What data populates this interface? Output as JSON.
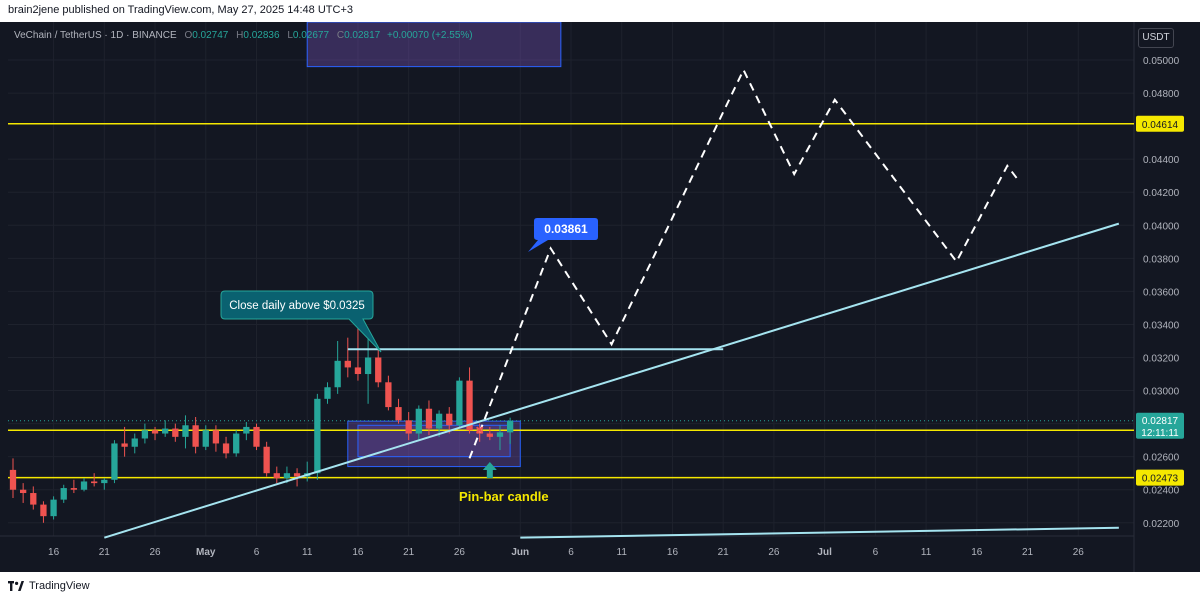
{
  "publisher": {
    "text": "brain2jene published on TradingView.com, May 27, 2025 14:48 UTC+3"
  },
  "legend": {
    "symbol": "VeChain / TetherUS · 1D · BINANCE",
    "open_label": "O",
    "open": "0.02747",
    "high_label": "H",
    "high": "0.02836",
    "low_label": "L",
    "low": "0.02677",
    "close_label": "C",
    "close": "0.02817",
    "change": "+0.00070 (+2.55%)"
  },
  "currency": "USDT",
  "footer": {
    "brand": "TradingView"
  },
  "chart_data": {
    "type": "candlestick",
    "ylim": [
      0.0212,
      0.0523
    ],
    "x_domain": [
      "2025-04-12",
      "2025-07-31"
    ],
    "y_ticks": [
      "0.02200",
      "0.02400",
      "0.02600",
      "0.02800",
      "0.03000",
      "0.03200",
      "0.03400",
      "0.03600",
      "0.03800",
      "0.04000",
      "0.04200",
      "0.04400",
      "0.04800",
      "0.05000"
    ],
    "x_ticks": [
      {
        "date": "2025-04-16",
        "label": "16"
      },
      {
        "date": "2025-04-21",
        "label": "21"
      },
      {
        "date": "2025-04-26",
        "label": "26"
      },
      {
        "date": "2025-05-01",
        "label": "May",
        "bold": true
      },
      {
        "date": "2025-05-06",
        "label": "6"
      },
      {
        "date": "2025-05-11",
        "label": "11"
      },
      {
        "date": "2025-05-16",
        "label": "16"
      },
      {
        "date": "2025-05-21",
        "label": "21"
      },
      {
        "date": "2025-05-26",
        "label": "26"
      },
      {
        "date": "2025-06-01",
        "label": "Jun",
        "bold": true
      },
      {
        "date": "2025-06-06",
        "label": "6"
      },
      {
        "date": "2025-06-11",
        "label": "11"
      },
      {
        "date": "2025-06-16",
        "label": "16"
      },
      {
        "date": "2025-06-21",
        "label": "21"
      },
      {
        "date": "2025-06-26",
        "label": "26"
      },
      {
        "date": "2025-07-01",
        "label": "Jul",
        "bold": true
      },
      {
        "date": "2025-07-06",
        "label": "6"
      },
      {
        "date": "2025-07-11",
        "label": "11"
      },
      {
        "date": "2025-07-16",
        "label": "16"
      },
      {
        "date": "2025-07-21",
        "label": "21"
      },
      {
        "date": "2025-07-26",
        "label": "26"
      }
    ],
    "candles": [
      {
        "date": "2025-04-12",
        "o": 0.0252,
        "h": 0.0259,
        "l": 0.0235,
        "c": 0.024
      },
      {
        "date": "2025-04-13",
        "o": 0.024,
        "h": 0.0244,
        "l": 0.0232,
        "c": 0.0238
      },
      {
        "date": "2025-04-14",
        "o": 0.0238,
        "h": 0.0242,
        "l": 0.0228,
        "c": 0.0231
      },
      {
        "date": "2025-04-15",
        "o": 0.0231,
        "h": 0.0233,
        "l": 0.022,
        "c": 0.0224
      },
      {
        "date": "2025-04-16",
        "o": 0.0224,
        "h": 0.0236,
        "l": 0.0222,
        "c": 0.0234
      },
      {
        "date": "2025-04-17",
        "o": 0.0234,
        "h": 0.0243,
        "l": 0.0232,
        "c": 0.0241
      },
      {
        "date": "2025-04-18",
        "o": 0.0241,
        "h": 0.0246,
        "l": 0.0238,
        "c": 0.024
      },
      {
        "date": "2025-04-19",
        "o": 0.024,
        "h": 0.0247,
        "l": 0.0239,
        "c": 0.0245
      },
      {
        "date": "2025-04-20",
        "o": 0.0245,
        "h": 0.025,
        "l": 0.0242,
        "c": 0.0244
      },
      {
        "date": "2025-04-21",
        "o": 0.0244,
        "h": 0.0247,
        "l": 0.024,
        "c": 0.0246
      },
      {
        "date": "2025-04-22",
        "o": 0.0246,
        "h": 0.027,
        "l": 0.0244,
        "c": 0.0268
      },
      {
        "date": "2025-04-23",
        "o": 0.0268,
        "h": 0.0278,
        "l": 0.026,
        "c": 0.0266
      },
      {
        "date": "2025-04-24",
        "o": 0.0266,
        "h": 0.0274,
        "l": 0.0262,
        "c": 0.0271
      },
      {
        "date": "2025-04-25",
        "o": 0.0271,
        "h": 0.028,
        "l": 0.0268,
        "c": 0.0276
      },
      {
        "date": "2025-04-26",
        "o": 0.0276,
        "h": 0.0278,
        "l": 0.027,
        "c": 0.0274
      },
      {
        "date": "2025-04-27",
        "o": 0.0274,
        "h": 0.0282,
        "l": 0.0272,
        "c": 0.0277
      },
      {
        "date": "2025-04-28",
        "o": 0.0277,
        "h": 0.028,
        "l": 0.0269,
        "c": 0.0272
      },
      {
        "date": "2025-04-29",
        "o": 0.0272,
        "h": 0.0285,
        "l": 0.0265,
        "c": 0.0279
      },
      {
        "date": "2025-04-30",
        "o": 0.0279,
        "h": 0.0284,
        "l": 0.0262,
        "c": 0.0266
      },
      {
        "date": "2025-05-01",
        "o": 0.0266,
        "h": 0.0279,
        "l": 0.0264,
        "c": 0.0276
      },
      {
        "date": "2025-05-02",
        "o": 0.0276,
        "h": 0.0279,
        "l": 0.0263,
        "c": 0.0268
      },
      {
        "date": "2025-05-03",
        "o": 0.0268,
        "h": 0.0272,
        "l": 0.0259,
        "c": 0.0262
      },
      {
        "date": "2025-05-04",
        "o": 0.0262,
        "h": 0.0276,
        "l": 0.026,
        "c": 0.0274
      },
      {
        "date": "2025-05-05",
        "o": 0.0274,
        "h": 0.0281,
        "l": 0.027,
        "c": 0.0278
      },
      {
        "date": "2025-05-06",
        "o": 0.0278,
        "h": 0.028,
        "l": 0.0264,
        "c": 0.0266
      },
      {
        "date": "2025-05-07",
        "o": 0.0266,
        "h": 0.0269,
        "l": 0.0248,
        "c": 0.025
      },
      {
        "date": "2025-05-08",
        "o": 0.025,
        "h": 0.0254,
        "l": 0.0244,
        "c": 0.0247
      },
      {
        "date": "2025-05-09",
        "o": 0.0247,
        "h": 0.0254,
        "l": 0.0244,
        "c": 0.025
      },
      {
        "date": "2025-05-10",
        "o": 0.025,
        "h": 0.0253,
        "l": 0.0242,
        "c": 0.0248
      },
      {
        "date": "2025-05-11",
        "o": 0.0248,
        "h": 0.0257,
        "l": 0.0245,
        "c": 0.025
      },
      {
        "date": "2025-05-12",
        "o": 0.025,
        "h": 0.0298,
        "l": 0.0246,
        "c": 0.0295
      },
      {
        "date": "2025-05-13",
        "o": 0.0295,
        "h": 0.0305,
        "l": 0.0292,
        "c": 0.0302
      },
      {
        "date": "2025-05-14",
        "o": 0.0302,
        "h": 0.033,
        "l": 0.0298,
        "c": 0.0318
      },
      {
        "date": "2025-05-15",
        "o": 0.0318,
        "h": 0.0332,
        "l": 0.0308,
        "c": 0.0314
      },
      {
        "date": "2025-05-16",
        "o": 0.0314,
        "h": 0.034,
        "l": 0.0306,
        "c": 0.031
      },
      {
        "date": "2025-05-17",
        "o": 0.031,
        "h": 0.0332,
        "l": 0.0292,
        "c": 0.032
      },
      {
        "date": "2025-05-18",
        "o": 0.032,
        "h": 0.0325,
        "l": 0.0302,
        "c": 0.0305
      },
      {
        "date": "2025-05-19",
        "o": 0.0305,
        "h": 0.0309,
        "l": 0.0288,
        "c": 0.029
      },
      {
        "date": "2025-05-20",
        "o": 0.029,
        "h": 0.0295,
        "l": 0.028,
        "c": 0.0282
      },
      {
        "date": "2025-05-21",
        "o": 0.0282,
        "h": 0.0287,
        "l": 0.027,
        "c": 0.0274
      },
      {
        "date": "2025-05-22",
        "o": 0.0274,
        "h": 0.0291,
        "l": 0.027,
        "c": 0.0289
      },
      {
        "date": "2025-05-23",
        "o": 0.0289,
        "h": 0.0294,
        "l": 0.0273,
        "c": 0.0277
      },
      {
        "date": "2025-05-24",
        "o": 0.0277,
        "h": 0.0288,
        "l": 0.0272,
        "c": 0.0286
      },
      {
        "date": "2025-05-25",
        "o": 0.0286,
        "h": 0.029,
        "l": 0.0274,
        "c": 0.0279
      },
      {
        "date": "2025-05-26",
        "o": 0.0279,
        "h": 0.0308,
        "l": 0.0277,
        "c": 0.0306
      },
      {
        "date": "2025-05-27",
        "o": 0.0306,
        "h": 0.0314,
        "l": 0.0274,
        "c": 0.0276
      },
      {
        "date": "2025-05-28",
        "o": 0.0276,
        "h": 0.028,
        "l": 0.0269,
        "c": 0.0274
      },
      {
        "date": "2025-05-29",
        "o": 0.0274,
        "h": 0.0278,
        "l": 0.027,
        "c": 0.0272
      },
      {
        "date": "2025-05-30",
        "o": 0.0272,
        "h": 0.0279,
        "l": 0.0264,
        "c": 0.02747
      },
      {
        "date": "2025-05-31",
        "o": 0.02747,
        "h": 0.02836,
        "l": 0.02677,
        "c": 0.02817
      }
    ],
    "horizontal_levels": [
      {
        "value": 0.04614,
        "label": "0.04614"
      },
      {
        "value": 0.0276,
        "label": "0.02760"
      },
      {
        "value": 0.02473,
        "label": "0.02473"
      }
    ],
    "current_price": {
      "value": 0.02817,
      "label": "0.02817",
      "countdown": "12:11:11"
    },
    "resistance_line": {
      "from": {
        "date": "2025-05-15",
        "value": 0.0325
      },
      "to": {
        "date": "2025-06-21",
        "value": 0.0325
      }
    },
    "trendlines": [
      {
        "from": {
          "date": "2025-04-21",
          "value": 0.0211
        },
        "to": {
          "date": "2025-07-30",
          "value": 0.0401
        }
      },
      {
        "from": {
          "date": "2025-06-01",
          "value": 0.0211
        },
        "to": {
          "date": "2025-07-30",
          "value": 0.0217
        }
      }
    ],
    "projection_path": [
      {
        "date": "2025-05-27",
        "value": 0.0259
      },
      {
        "date": "2025-06-04",
        "value": 0.0386
      },
      {
        "date": "2025-06-10",
        "value": 0.0328
      },
      {
        "date": "2025-06-23",
        "value": 0.0494
      },
      {
        "date": "2025-06-28",
        "value": 0.0431
      },
      {
        "date": "2025-07-02",
        "value": 0.0476
      },
      {
        "date": "2025-07-14",
        "value": 0.0378
      },
      {
        "date": "2025-07-19",
        "value": 0.0436
      },
      {
        "date": "2025-07-20",
        "value": 0.0428
      }
    ],
    "target_zone": {
      "from": "2025-05-11",
      "to": "2025-06-05",
      "low": 0.0496,
      "high": 0.0523
    },
    "consolidation_zone": {
      "from": "2025-05-15",
      "to": "2025-06-01",
      "low": 0.0254,
      "high": 0.02815
    },
    "inner_zone": {
      "from": "2025-05-16",
      "to": "2025-05-31",
      "low": 0.026,
      "high": 0.0279
    },
    "annotations": [
      {
        "text": "Close daily above $0.0325",
        "type": "callout"
      },
      {
        "text": "0.03861",
        "type": "price-label"
      },
      {
        "text": "Pin-bar candle",
        "type": "label"
      }
    ]
  }
}
